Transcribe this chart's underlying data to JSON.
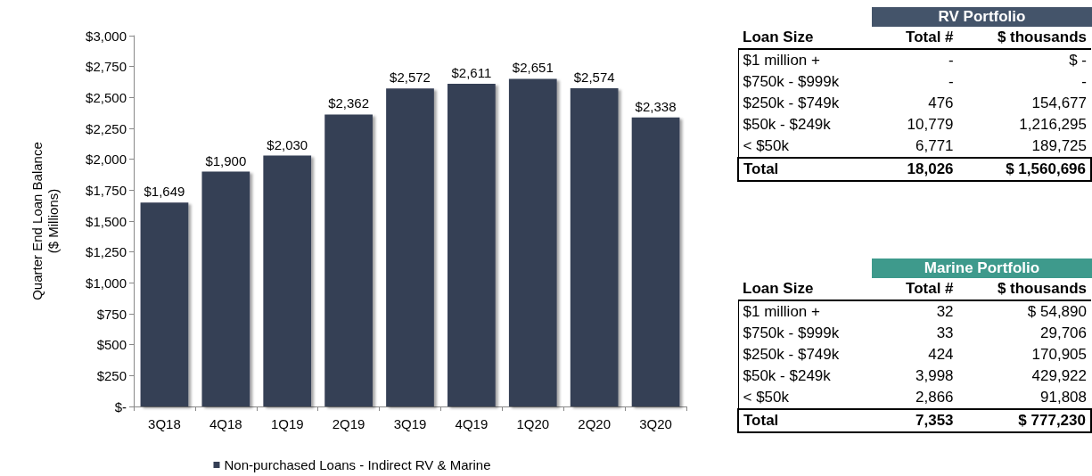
{
  "chart_data": [
    {
      "type": "bar",
      "ylabel": "Quarter End Loan Balance\n($ Millions)",
      "categories": [
        "3Q18",
        "4Q18",
        "1Q19",
        "2Q19",
        "3Q19",
        "4Q19",
        "1Q20",
        "2Q20",
        "3Q20"
      ],
      "series": [
        {
          "name": "Non-purchased Loans - Indirect RV & Marine",
          "color": "#353f55",
          "values": [
            1649,
            1900,
            2030,
            2362,
            2572,
            2611,
            2651,
            2574,
            2338
          ],
          "value_labels": [
            "$1,649",
            "$1,900",
            "$2,030",
            "$2,362",
            "$2,572",
            "$2,611",
            "$2,651",
            "$2,574",
            "$2,338"
          ]
        }
      ],
      "ylim": [
        0,
        3000
      ],
      "yticks": [
        {
          "value": 0,
          "label": "$-"
        },
        {
          "value": 250,
          "label": "$250"
        },
        {
          "value": 500,
          "label": "$500"
        },
        {
          "value": 750,
          "label": "$750"
        },
        {
          "value": 1000,
          "label": "$1,000"
        },
        {
          "value": 1250,
          "label": "$1,250"
        },
        {
          "value": 1500,
          "label": "$1,500"
        },
        {
          "value": 1750,
          "label": "$1,750"
        },
        {
          "value": 2000,
          "label": "$2,000"
        },
        {
          "value": 2250,
          "label": "$2,250"
        },
        {
          "value": 2500,
          "label": "$2,500"
        },
        {
          "value": 2750,
          "label": "$2,750"
        },
        {
          "value": 3000,
          "label": "$3,000"
        }
      ],
      "grid": false,
      "legend": "bottom"
    },
    {
      "type": "other",
      "title": "RV Portfolio",
      "categories": [
        "Loan Size",
        "Total #",
        "$ thousands"
      ],
      "annotations": [
        "$1 million +",
        "-",
        "$ -",
        "$750k - $999k",
        "-",
        "-",
        "$250k - $749k",
        "476",
        "154,677",
        "$50k - $249k",
        "10,779",
        "1,216,295",
        "< $50k",
        "6,771",
        "189,725",
        "Total",
        "18,026",
        "$ 1,560,696"
      ]
    },
    {
      "type": "other",
      "title": "Marine Portfolio",
      "categories": [
        "Loan Size",
        "Total #",
        "$ thousands"
      ],
      "annotations": [
        "$1 million +",
        "32",
        "$ 54,890",
        "$750k - $999k",
        "33",
        "29,706",
        "$250k - $749k",
        "424",
        "170,905",
        "$50k - $249k",
        "3,998",
        "429,922",
        "< $50k",
        "2,866",
        "91,808",
        "Total",
        "7,353",
        "$ 777,230"
      ]
    }
  ]
}
